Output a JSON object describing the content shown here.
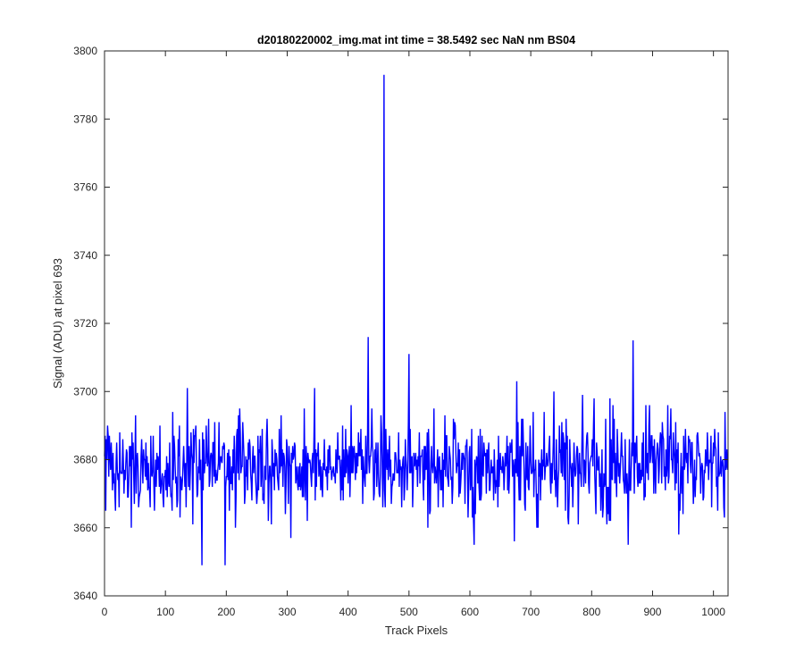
{
  "chart_data": {
    "type": "line",
    "title": "d20180220002_img.mat int time = 38.5492 sec  NaN nm BS04",
    "xlabel": "Track Pixels",
    "ylabel": "Signal (ADU) at pixel 693",
    "xlim": [
      0,
      1024
    ],
    "ylim": [
      3640,
      3800
    ],
    "xticks": [
      0,
      100,
      200,
      300,
      400,
      500,
      600,
      700,
      800,
      900,
      1000
    ],
    "yticks": [
      3640,
      3660,
      3680,
      3700,
      3720,
      3740,
      3760,
      3780,
      3800
    ],
    "grid": false,
    "box": true,
    "series_color": "#0000ff",
    "series": [
      {
        "n_points": 1024,
        "baseline_mean": 3678,
        "baseline_std": 7,
        "typical_min": 3650,
        "typical_max": 3716,
        "features": [
          {
            "x": 160,
            "y": 3649
          },
          {
            "x": 198,
            "y": 3649
          },
          {
            "x": 433,
            "y": 3716
          },
          {
            "x": 459,
            "y": 3793
          },
          {
            "x": 500,
            "y": 3711
          },
          {
            "x": 607,
            "y": 3655
          },
          {
            "x": 860,
            "y": 3655
          },
          {
            "x": 868,
            "y": 3715
          }
        ]
      }
    ]
  }
}
